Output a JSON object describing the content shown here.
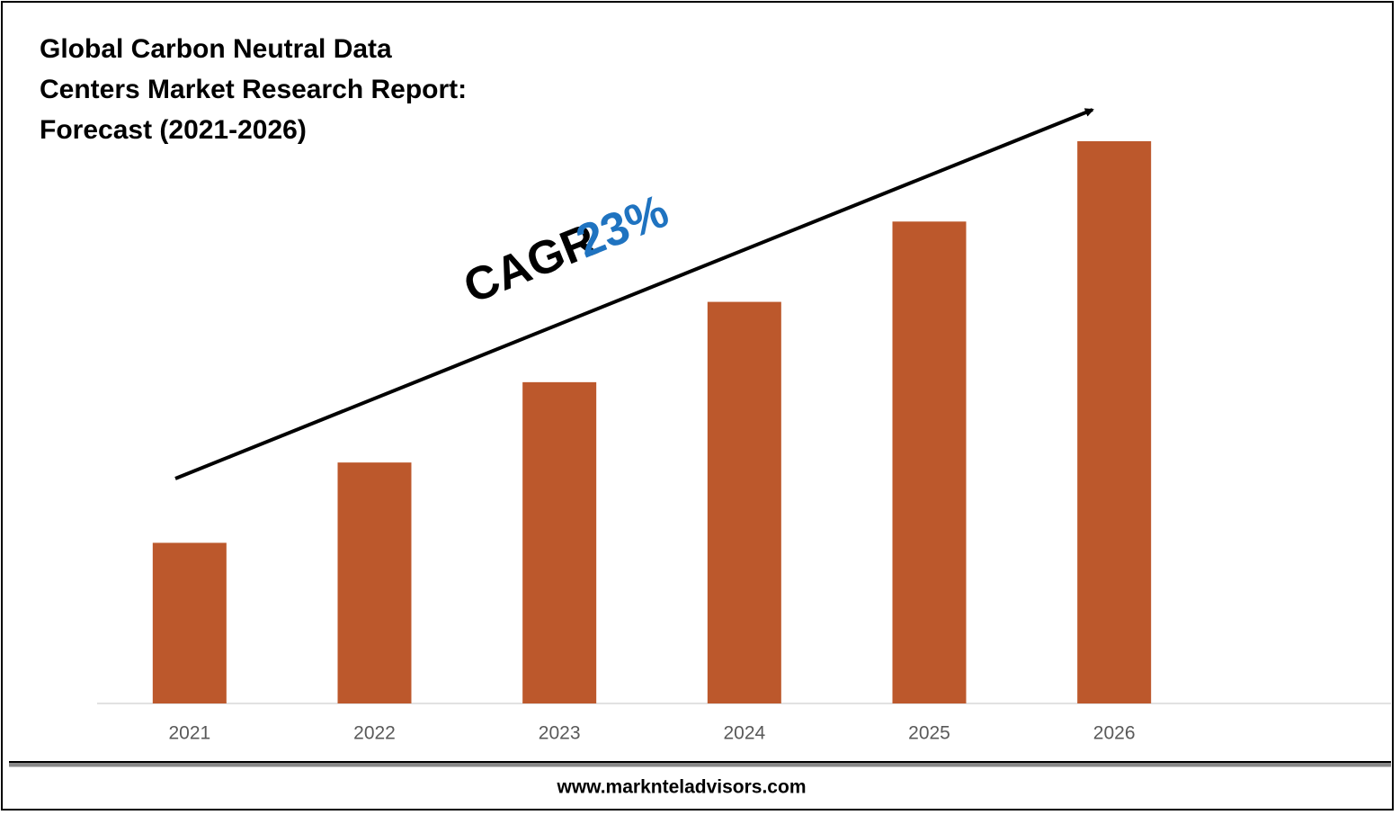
{
  "chart_data": {
    "type": "bar",
    "title": "Global Carbon Neutral Data Centers Market Research Report: Forecast (2021-2026)",
    "annotation": {
      "label": "CAGR",
      "value": "23%"
    },
    "footer": "www.marknteladvisors.com",
    "categories": [
      "2021",
      "2022",
      "2023",
      "2024",
      "2025",
      "2026"
    ],
    "values": [
      2,
      3,
      4,
      5,
      6,
      7
    ],
    "color": "#bc582c",
    "ylim": [
      0,
      7
    ]
  }
}
